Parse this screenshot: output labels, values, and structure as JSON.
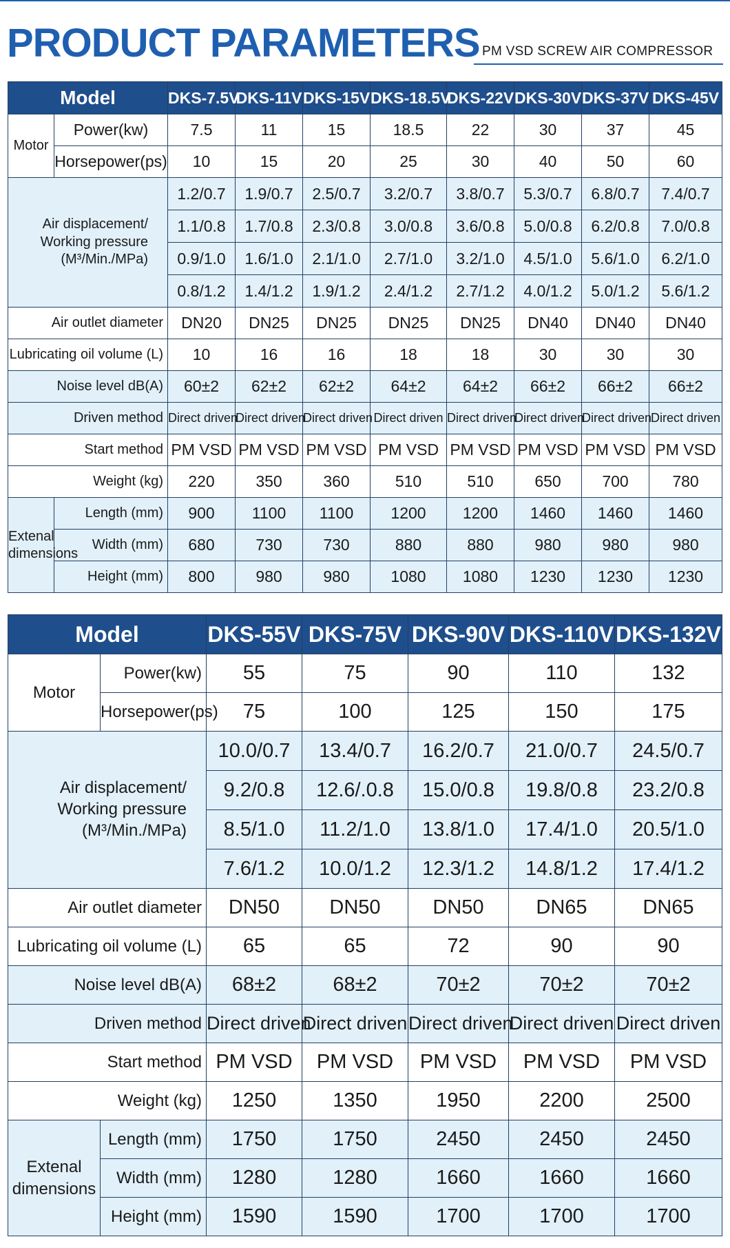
{
  "header": {
    "title": "PRODUCT PARAMETERS",
    "subtitle": "PM VSD SCREW AIR COMPRESSOR"
  },
  "labels": {
    "model": "Model",
    "motor": "Motor",
    "power": "Power(kw)",
    "horsepower": "Horsepower(ps)",
    "air_displacement": "Air displacement/ Working pressure (M³/Min./MPa)",
    "air_outlet": "Air outlet diameter",
    "oil_volume": "Lubricating oil volume (L)",
    "noise": "Noise level dB(A)",
    "driven": "Driven method",
    "start": "Start method",
    "weight": "Weight (kg)",
    "external": "Extenal dimensions",
    "length": "Length (mm)",
    "width": "Width (mm)",
    "height": "Height (mm)"
  },
  "table1": {
    "models": [
      "DKS-7.5V",
      "DKS-11V",
      "DKS-15V",
      "DKS-18.5V",
      "DKS-22V",
      "DKS-30V",
      "DKS-37V",
      "DKS-45V"
    ],
    "power": [
      "7.5",
      "11",
      "15",
      "18.5",
      "22",
      "30",
      "37",
      "45"
    ],
    "horsepower": [
      "10",
      "15",
      "20",
      "25",
      "30",
      "40",
      "50",
      "60"
    ],
    "air": [
      [
        "1.2/0.7",
        "1.9/0.7",
        "2.5/0.7",
        "3.2/0.7",
        "3.8/0.7",
        "5.3/0.7",
        "6.8/0.7",
        "7.4/0.7"
      ],
      [
        "1.1/0.8",
        "1.7/0.8",
        "2.3/0.8",
        "3.0/0.8",
        "3.6/0.8",
        "5.0/0.8",
        "6.2/0.8",
        "7.0/0.8"
      ],
      [
        "0.9/1.0",
        "1.6/1.0",
        "2.1/1.0",
        "2.7/1.0",
        "3.2/1.0",
        "4.5/1.0",
        "5.6/1.0",
        "6.2/1.0"
      ],
      [
        "0.8/1.2",
        "1.4/1.2",
        "1.9/1.2",
        "2.4/1.2",
        "2.7/1.2",
        "4.0/1.2",
        "5.0/1.2",
        "5.6/1.2"
      ]
    ],
    "outlet": [
      "DN20",
      "DN25",
      "DN25",
      "DN25",
      "DN25",
      "DN40",
      "DN40",
      "DN40"
    ],
    "oil": [
      "10",
      "16",
      "16",
      "18",
      "18",
      "30",
      "30",
      "30"
    ],
    "noise": [
      "60±2",
      "62±2",
      "62±2",
      "64±2",
      "64±2",
      "66±2",
      "66±2",
      "66±2"
    ],
    "driven": [
      "Direct driven",
      "Direct driven",
      "Direct driven",
      "Direct driven",
      "Direct driven",
      "Direct driven",
      "Direct driven",
      "Direct driven"
    ],
    "start": [
      "PM VSD",
      "PM VSD",
      "PM VSD",
      "PM VSD",
      "PM VSD",
      "PM VSD",
      "PM VSD",
      "PM VSD"
    ],
    "weight": [
      "220",
      "350",
      "360",
      "510",
      "510",
      "650",
      "700",
      "780"
    ],
    "length": [
      "900",
      "1100",
      "1100",
      "1200",
      "1200",
      "1460",
      "1460",
      "1460"
    ],
    "width": [
      "680",
      "730",
      "730",
      "880",
      "880",
      "980",
      "980",
      "980"
    ],
    "height": [
      "800",
      "980",
      "980",
      "1080",
      "1080",
      "1230",
      "1230",
      "1230"
    ]
  },
  "table2": {
    "models": [
      "DKS-55V",
      "DKS-75V",
      "DKS-90V",
      "DKS-110V",
      "DKS-132V"
    ],
    "power": [
      "55",
      "75",
      "90",
      "110",
      "132"
    ],
    "horsepower": [
      "75",
      "100",
      "125",
      "150",
      "175"
    ],
    "air": [
      [
        "10.0/0.7",
        "13.4/0.7",
        "16.2/0.7",
        "21.0/0.7",
        "24.5/0.7"
      ],
      [
        "9.2/0.8",
        "12.6/.0.8",
        "15.0/0.8",
        "19.8/0.8",
        "23.2/0.8"
      ],
      [
        "8.5/1.0",
        "11.2/1.0",
        "13.8/1.0",
        "17.4/1.0",
        "20.5/1.0"
      ],
      [
        "7.6/1.2",
        "10.0/1.2",
        "12.3/1.2",
        "14.8/1.2",
        "17.4/1.2"
      ]
    ],
    "outlet": [
      "DN50",
      "DN50",
      "DN50",
      "DN65",
      "DN65"
    ],
    "oil": [
      "65",
      "65",
      "72",
      "90",
      "90"
    ],
    "noise": [
      "68±2",
      "68±2",
      "70±2",
      "70±2",
      "70±2"
    ],
    "driven": [
      "Direct driven",
      "Direct driven",
      "Direct driven",
      "Direct driven",
      "Direct driven"
    ],
    "start": [
      "PM VSD",
      "PM VSD",
      "PM VSD",
      "PM VSD",
      "PM VSD"
    ],
    "weight": [
      "1250",
      "1350",
      "1950",
      "2200",
      "2500"
    ],
    "length": [
      "1750",
      "1750",
      "2450",
      "2450",
      "2450"
    ],
    "width": [
      "1280",
      "1280",
      "1660",
      "1660",
      "1660"
    ],
    "height": [
      "1590",
      "1590",
      "1700",
      "1700",
      "1700"
    ]
  }
}
